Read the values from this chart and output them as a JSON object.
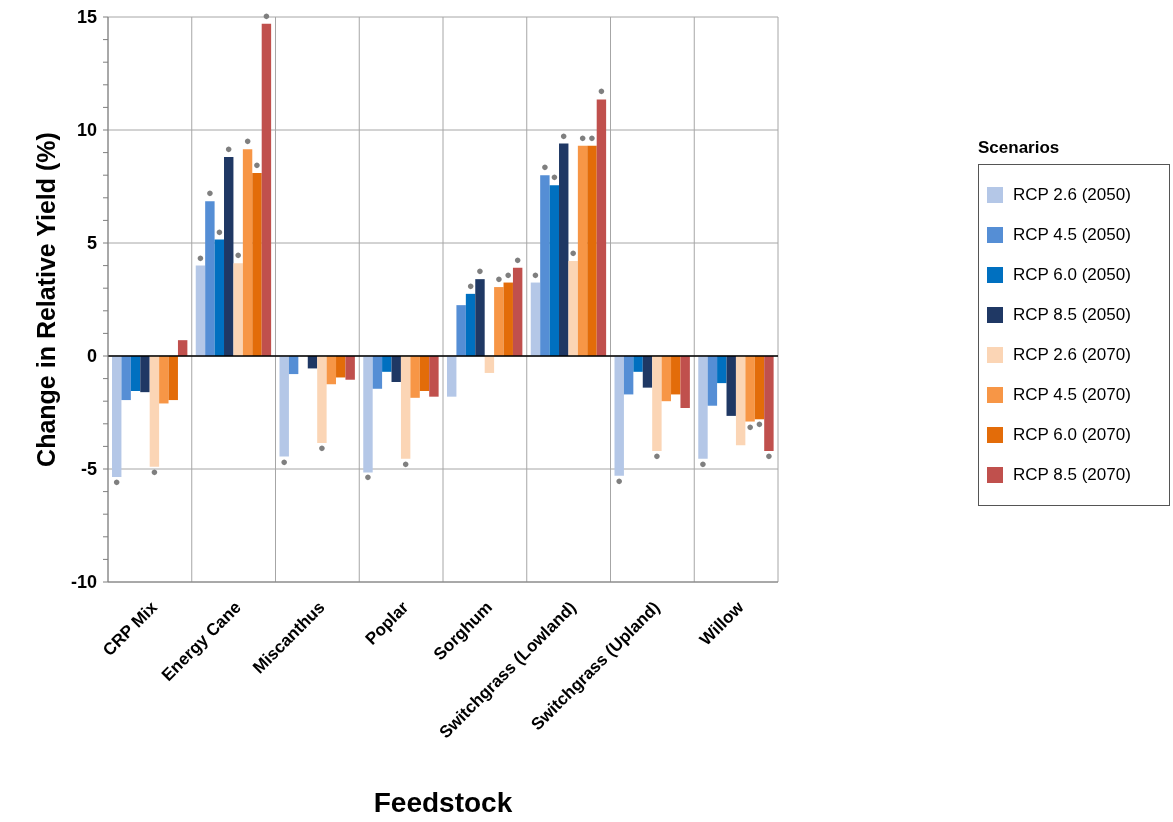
{
  "chart_data": {
    "type": "bar",
    "xlabel": "Feedstock",
    "ylabel": "Change in Relative Yield (%)",
    "legend_title": "Scenarios",
    "categories": [
      "CRP Mix",
      "Energy Cane",
      "Miscanthus",
      "Poplar",
      "Sorghum",
      "Switchgrass (Lowland)",
      "Switchgrass (Upland)",
      "Willow"
    ],
    "series": [
      {
        "name": "RCP 2.6 (2050)",
        "color": "#b4c7e7",
        "values": [
          -5.35,
          4.0,
          -4.45,
          -5.15,
          -1.8,
          3.25,
          -5.3,
          -4.55
        ],
        "value_labels": [
          "●",
          "●",
          "●",
          "●",
          null,
          "●",
          "●",
          "●"
        ]
      },
      {
        "name": "RCP 4.5 (2050)",
        "color": "#558ed5",
        "values": [
          -1.95,
          6.85,
          -0.8,
          -1.45,
          2.25,
          8.0,
          -1.7,
          -2.2
        ],
        "value_labels": [
          null,
          "●",
          null,
          null,
          null,
          "●",
          null,
          null
        ]
      },
      {
        "name": "RCP 6.0 (2050)",
        "color": "#0070c0",
        "values": [
          -1.55,
          5.15,
          0,
          -0.7,
          2.75,
          7.55,
          -0.7,
          -1.2
        ],
        "value_labels": [
          null,
          "●",
          null,
          null,
          "●",
          "●",
          null,
          null
        ]
      },
      {
        "name": "RCP 8.5 (2050)",
        "color": "#1f3864",
        "values": [
          -1.6,
          8.8,
          -0.55,
          -1.15,
          3.4,
          9.4,
          -1.4,
          -2.65
        ],
        "value_labels": [
          null,
          "●",
          null,
          null,
          "●",
          "●",
          null,
          null
        ]
      },
      {
        "name": "RCP 2.6 (2070)",
        "color": "#fbd5b5",
        "values": [
          -4.9,
          4.1,
          -3.85,
          -4.55,
          -0.75,
          4.2,
          -4.2,
          -3.95
        ],
        "value_labels": [
          "●",
          "●",
          "●",
          "●",
          null,
          "●",
          "●",
          null
        ]
      },
      {
        "name": "RCP 4.5 (2070)",
        "color": "#f79646",
        "values": [
          -2.1,
          9.15,
          -1.25,
          -1.85,
          3.05,
          9.3,
          -2.0,
          -2.9
        ],
        "value_labels": [
          null,
          "●",
          null,
          null,
          "●",
          "●",
          null,
          "●"
        ]
      },
      {
        "name": "RCP 6.0 (2070)",
        "color": "#e36c09",
        "values": [
          -1.95,
          8.1,
          -0.95,
          -1.55,
          3.25,
          9.3,
          -1.7,
          -2.8
        ],
        "value_labels": [
          null,
          "●",
          null,
          null,
          "●",
          "●",
          null,
          "●"
        ]
      },
      {
        "name": "RCP 8.5 (2070)",
        "color": "#c0504d",
        "values": [
          0.7,
          14.7,
          -1.05,
          -1.8,
          3.9,
          11.35,
          -2.3,
          -4.2
        ],
        "value_labels": [
          null,
          "●",
          null,
          null,
          "●",
          "●",
          null,
          "●"
        ]
      }
    ],
    "ylim": [
      -10,
      15
    ],
    "yticks": [
      -10,
      {
        "value": -9,
        "label": null
      },
      {
        "value": -8,
        "label": null
      },
      {
        "value": -7,
        "label": null
      },
      {
        "value": -6,
        "label": null
      },
      -5,
      {
        "value": -4,
        "label": null
      },
      {
        "value": -3,
        "label": null
      },
      {
        "value": -2,
        "label": null
      },
      {
        "value": -1,
        "label": null
      },
      0,
      {
        "value": 1,
        "label": null
      },
      {
        "value": 2,
        "label": null
      },
      {
        "value": 3,
        "label": null
      },
      {
        "value": 4,
        "label": null
      },
      5,
      {
        "value": 6,
        "label": null
      },
      {
        "value": 7,
        "label": null
      },
      {
        "value": 8,
        "label": null
      },
      {
        "value": 9,
        "label": null
      },
      10,
      {
        "value": 11,
        "label": null
      },
      {
        "value": 12,
        "label": null
      },
      {
        "value": 13,
        "label": null
      },
      {
        "value": 14,
        "label": null
      },
      15
    ],
    "grid": true,
    "legend": "right"
  }
}
